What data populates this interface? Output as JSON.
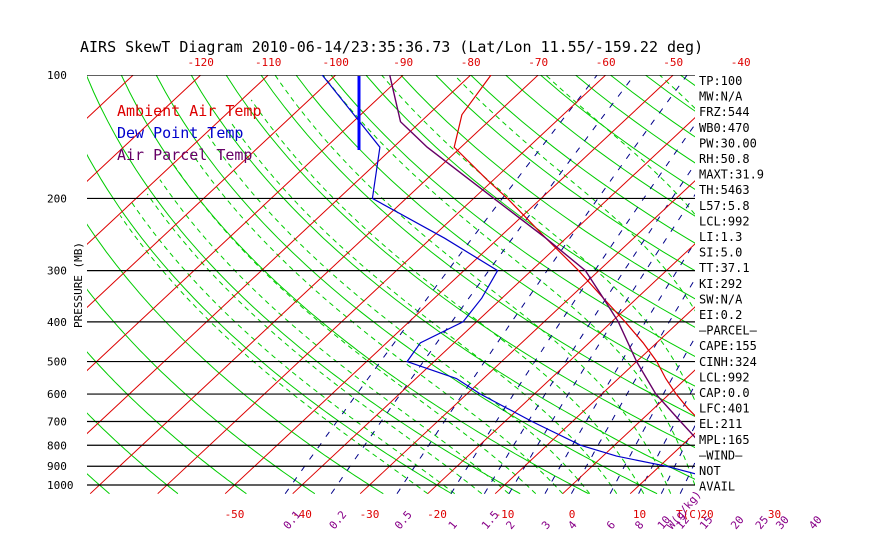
{
  "title": "AIRS SkewT Diagram 2010-06-14/23:35:36.73 (Lat/Lon 11.55/-159.22 deg)",
  "colors": {
    "ambient": "#dd0000",
    "dewpoint": "#0000cc",
    "parcel": "#660066",
    "isotherm": "#dd0000",
    "dry_adiabat": "#00cc00",
    "moist_adiabat": "#00cc00",
    "mixing_ratio": "#000088",
    "isobar": "#000000",
    "wind_bar": "#0000ff"
  },
  "legend": [
    "Ambient Air Temp",
    "Dew Point Temp",
    "Air Parcel Temp"
  ],
  "chart_data": {
    "type": "line",
    "title": "AIRS SkewT Diagram 2010-06-14/23:35:36.73 (Lat/Lon 11.55/-159.22 deg)",
    "ylabel": "PRESSURE (MB)",
    "y_scale": "log",
    "ylim": [
      1000,
      100
    ],
    "pressure_ticks": [
      100,
      200,
      300,
      400,
      500,
      600,
      700,
      800,
      900,
      1000
    ],
    "top_temp_ticks": [
      -120,
      -110,
      -100,
      -90,
      -80,
      -70,
      -60,
      -50,
      -40
    ],
    "bottom_temp_ticks": [
      -50,
      -40,
      -30,
      -20,
      -10,
      0,
      10,
      20,
      30
    ],
    "bottom_temp_unit": "T(C)",
    "mixing_ratio_ticks": [
      "0.1",
      "0.2",
      "0.5",
      "1",
      "1.5",
      "2",
      "3",
      "4",
      "6",
      "8",
      "10",
      "12",
      "15",
      "20",
      "25",
      "30",
      "40"
    ],
    "mixing_ratio_unit": "W(g/kg)",
    "series": [
      {
        "name": "Ambient Air Temp",
        "points": [
          [
            1000,
            27
          ],
          [
            950,
            24
          ],
          [
            900,
            21
          ],
          [
            850,
            18
          ],
          [
            800,
            15
          ],
          [
            750,
            12
          ],
          [
            700,
            9
          ],
          [
            650,
            5
          ],
          [
            600,
            1
          ],
          [
            550,
            -3
          ],
          [
            500,
            -7
          ],
          [
            450,
            -12
          ],
          [
            400,
            -18
          ],
          [
            350,
            -25
          ],
          [
            300,
            -33
          ],
          [
            250,
            -43
          ],
          [
            200,
            -55
          ],
          [
            180,
            -61
          ],
          [
            150,
            -71
          ],
          [
            125,
            -75
          ],
          [
            100,
            -77
          ]
        ]
      },
      {
        "name": "Dew Point Temp",
        "points": [
          [
            1000,
            22
          ],
          [
            980,
            23
          ],
          [
            950,
            18
          ],
          [
            900,
            11
          ],
          [
            850,
            2
          ],
          [
            800,
            -5
          ],
          [
            700,
            -16
          ],
          [
            600,
            -28
          ],
          [
            550,
            -34
          ],
          [
            500,
            -44
          ],
          [
            450,
            -45
          ],
          [
            400,
            -42
          ],
          [
            350,
            -43
          ],
          [
            300,
            -45
          ],
          [
            250,
            -58
          ],
          [
            200,
            -75
          ],
          [
            150,
            -82
          ],
          [
            100,
            -102
          ]
        ]
      },
      {
        "name": "Air Parcel Temp",
        "points": [
          [
            1000,
            27
          ],
          [
            992,
            24
          ],
          [
            950,
            22
          ],
          [
            900,
            19
          ],
          [
            850,
            16
          ],
          [
            800,
            13
          ],
          [
            700,
            6
          ],
          [
            600,
            -2
          ],
          [
            500,
            -10
          ],
          [
            400,
            -19
          ],
          [
            350,
            -25
          ],
          [
            300,
            -32
          ],
          [
            250,
            -43
          ],
          [
            200,
            -57
          ],
          [
            150,
            -75
          ],
          [
            130,
            -83
          ],
          [
            100,
            -92
          ]
        ]
      }
    ]
  },
  "indices": [
    "TP:100",
    "MW:N/A",
    "FRZ:544",
    "WB0:470",
    "PW:30.00",
    "RH:50.8",
    "MAXT:31.9",
    "TH:5463",
    "L57:5.8",
    "LCL:992",
    "LI:1.3",
    "SI:5.0",
    "TT:37.1",
    "KI:292",
    "SW:N/A",
    "EI:0.2",
    "—PARCEL—",
    "CAPE:155",
    "CINH:324",
    "LCL:992",
    "CAP:0.0",
    "LFC:401",
    "EL:211",
    "MPL:165",
    "—WIND—",
    "NOT",
    "AVAIL"
  ]
}
